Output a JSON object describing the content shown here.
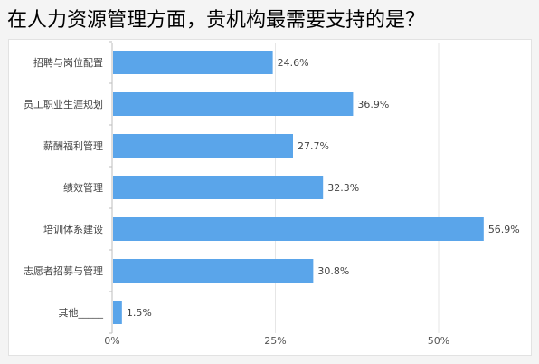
{
  "chart_data": {
    "type": "bar",
    "orientation": "horizontal",
    "title": "在人力资源管理方面，贵机构最需要支持的是？",
    "categories": [
      "招聘与岗位配置",
      "员工职业生涯规划",
      "薪酬福利管理",
      "绩效管理",
      "培训体系建设",
      "志愿者招募与管理",
      "其他_____"
    ],
    "values": [
      24.6,
      36.9,
      27.7,
      32.3,
      56.9,
      30.8,
      1.5
    ],
    "value_labels": [
      "24.6%",
      "36.9%",
      "27.7%",
      "32.3%",
      "56.9%",
      "30.8%",
      "1.5%"
    ],
    "xlim": [
      0,
      63
    ],
    "x_ticks": [
      0,
      25,
      50
    ],
    "x_tick_labels": [
      "0%",
      "25%",
      "50%"
    ],
    "grid": "vertical",
    "legend": "none",
    "bar_color": "#5aa5ea",
    "grid_color": "#e6e6e6",
    "label_color": "#444444"
  }
}
